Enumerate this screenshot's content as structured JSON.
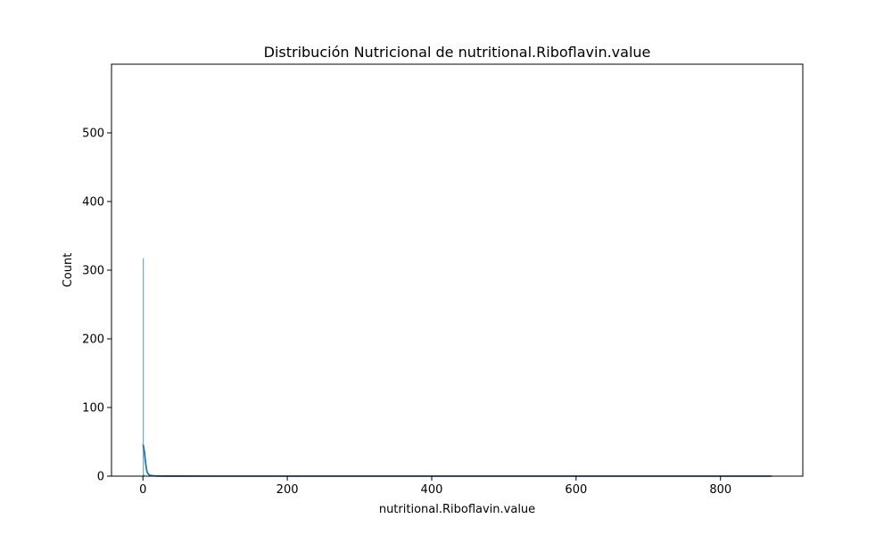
{
  "chart_data": {
    "type": "histogram",
    "title": "Distribución Nutricional de nutritional.Riboflavin.value",
    "xlabel": "nutritional.Riboflavin.value",
    "ylabel": "Count",
    "xlim": [
      -43.5,
      914
    ],
    "ylim": [
      0,
      600
    ],
    "x_ticks": [
      0,
      200,
      400,
      600,
      800
    ],
    "y_ticks": [
      0,
      100,
      200,
      300,
      400,
      500
    ],
    "grid": false,
    "legend": "none",
    "bar_color": "#1f77b4",
    "kde_color": "#1f77b4",
    "bins": [
      {
        "x0": 0.0,
        "x1": 0.87,
        "count": 317
      },
      {
        "x0": 0.87,
        "x1": 1.74,
        "count": 2
      },
      {
        "x0": 870.0,
        "x1": 870.87,
        "count": 1
      }
    ],
    "kde": {
      "x": [
        0,
        1,
        2,
        3,
        4,
        5,
        6,
        8,
        10,
        15,
        20,
        30,
        50,
        100,
        200,
        400,
        600,
        800,
        870
      ],
      "y": [
        46,
        43,
        36,
        26,
        17,
        10,
        5.5,
        2.5,
        1.2,
        0.4,
        0.2,
        0.1,
        0.05,
        0.02,
        0.01,
        0.01,
        0.01,
        0.01,
        0.01
      ]
    }
  }
}
